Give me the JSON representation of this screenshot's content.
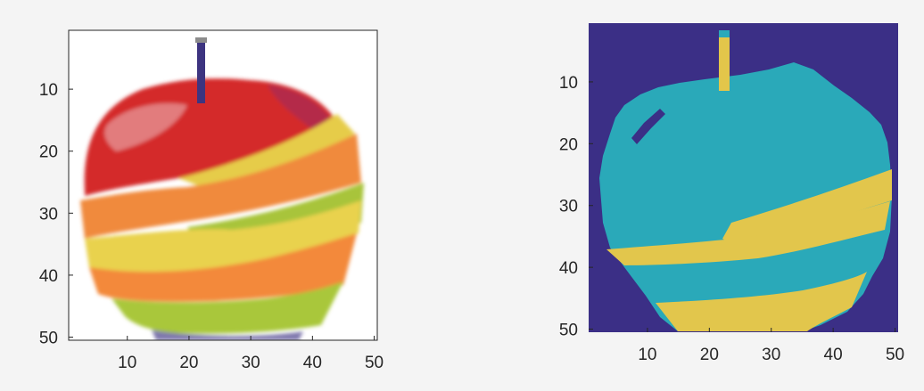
{
  "chart_data": [
    {
      "type": "image",
      "title": "",
      "description_source": "original photograph (sliced multicolored apple), pixelated 50x50",
      "xlim": [
        0.5,
        50.5
      ],
      "ylim": [
        0.5,
        50.5
      ],
      "y_reversed": true,
      "xticks": [
        10,
        20,
        30,
        40,
        50
      ],
      "yticks": [
        10,
        20,
        30,
        40,
        50
      ],
      "xtick_labels": [
        "10",
        "20",
        "30",
        "40",
        "50"
      ],
      "ytick_labels": [
        "10",
        "20",
        "30",
        "40",
        "50"
      ],
      "regions": [
        {
          "name": "red",
          "color": "#d22a2a"
        },
        {
          "name": "yellow",
          "color": "#e8d24a"
        },
        {
          "name": "orange",
          "color": "#f5893a"
        },
        {
          "name": "green",
          "color": "#a6c83a"
        },
        {
          "name": "stem",
          "color": "#3b2f7a"
        }
      ]
    },
    {
      "type": "heatmap",
      "title": "",
      "description_source": "label map (segmentation)",
      "xlim": [
        0.5,
        50.5
      ],
      "ylim": [
        0.5,
        50.5
      ],
      "y_reversed": true,
      "xticks": [
        10,
        20,
        30,
        40,
        50
      ],
      "yticks": [
        10,
        20,
        30,
        40,
        50
      ],
      "xtick_labels": [
        "10",
        "20",
        "30",
        "40",
        "50"
      ],
      "ytick_labels": [
        "10",
        "20",
        "30",
        "40",
        "50"
      ],
      "colors": {
        "background": "#3b2f86",
        "cluster_a": "#2aa9b9",
        "cluster_b": "#e3c64a"
      }
    }
  ]
}
